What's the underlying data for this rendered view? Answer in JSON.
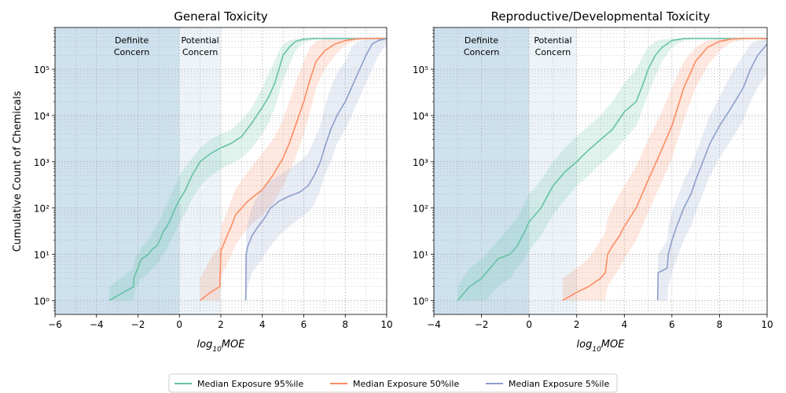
{
  "figure": {
    "legend": [
      {
        "label": "Median Exposure 95%ile",
        "color": "#66c2a5"
      },
      {
        "label": "Median Exposure 50%ile",
        "color": "#fc8d62"
      },
      {
        "label": "Median Exposure 5%ile",
        "color": "#8da0cb"
      }
    ]
  },
  "chart_data": [
    {
      "type": "line",
      "title": "General Toxicity",
      "xlabel": "log10MOE",
      "ylabel": "Cumulative Count of Chemicals",
      "xlim": [
        -6,
        10
      ],
      "ylim": [
        0.5,
        800000
      ],
      "yscale": "log",
      "grid": true,
      "xticks": [
        "−6",
        "−4",
        "−2",
        "0",
        "2",
        "4",
        "6",
        "8",
        "10"
      ],
      "yticks": [
        "10⁰",
        "10¹",
        "10²",
        "10³",
        "10⁴",
        "10⁵"
      ],
      "regions": [
        {
          "label_line1": "Definite",
          "label_line2": "Concern",
          "x0": -6,
          "x1": 0,
          "color": "#a6c8e0",
          "opacity": 0.55
        },
        {
          "label_line1": "Potential",
          "label_line2": "Concern",
          "x0": 0,
          "x1": 2,
          "color": "#a6c8e0",
          "opacity": 0.2
        }
      ],
      "series": [
        {
          "name": "Median Exposure 95%ile",
          "color": "#66c2a5",
          "x": [
            -3.4,
            -2.2,
            -2.2,
            -2.1,
            -2.0,
            -1.9,
            -1.8,
            -1.5,
            -1.3,
            -1.1,
            -0.9,
            -0.8,
            -0.6,
            -0.4,
            -0.3,
            -0.2,
            0.0,
            0.3,
            0.6,
            1.0,
            1.5,
            2.0,
            2.5,
            3.0,
            3.5,
            4.0,
            4.3,
            4.6,
            4.8,
            5.0,
            5.3,
            5.6,
            6.0,
            6.5,
            7.0,
            8.0,
            9.0,
            10.0
          ],
          "y": [
            1,
            2,
            3,
            4,
            5,
            7,
            8,
            10,
            13,
            15,
            22,
            30,
            40,
            60,
            80,
            100,
            150,
            250,
            500,
            1000,
            1500,
            2000,
            2500,
            3500,
            7000,
            15000,
            25000,
            50000,
            100000,
            200000,
            300000,
            400000,
            450000,
            460000,
            460000,
            460000,
            460000,
            460000
          ],
          "band_lower": [
            1,
            1,
            1,
            2,
            2,
            3,
            3,
            4,
            5,
            6,
            8,
            10,
            13,
            20,
            25,
            30,
            45,
            80,
            150,
            300,
            500,
            700,
            900,
            1200,
            2000,
            4000,
            7000,
            15000,
            30000,
            60000,
            120000,
            250000,
            380000,
            440000,
            460000,
            460000,
            460000,
            460000
          ],
          "band_upper": [
            2,
            5,
            7,
            9,
            10,
            12,
            15,
            20,
            30,
            40,
            60,
            80,
            120,
            200,
            250,
            300,
            500,
            800,
            1200,
            2000,
            3000,
            4000,
            5000,
            8000,
            15000,
            40000,
            80000,
            150000,
            250000,
            350000,
            420000,
            450000,
            460000,
            460000,
            460000,
            460000,
            460000,
            460000
          ]
        },
        {
          "name": "Median Exposure 50%ile",
          "color": "#fc8d62",
          "x": [
            1.0,
            1.5,
            1.95,
            2.0,
            2.1,
            2.3,
            2.5,
            2.7,
            3.0,
            3.3,
            3.6,
            4.0,
            4.5,
            5.0,
            5.3,
            5.6,
            6.0,
            6.3,
            6.6,
            7.0,
            7.5,
            8.0,
            8.5,
            9.0,
            10.0
          ],
          "y": [
            1,
            1.5,
            2,
            12,
            15,
            25,
            40,
            70,
            100,
            140,
            180,
            250,
            500,
            1200,
            2500,
            6000,
            20000,
            60000,
            150000,
            250000,
            350000,
            420000,
            450000,
            460000,
            460000
          ],
          "band_lower": [
            1,
            1,
            1,
            3,
            4,
            6,
            10,
            15,
            25,
            35,
            50,
            70,
            120,
            300,
            600,
            1200,
            4000,
            12000,
            40000,
            100000,
            200000,
            330000,
            420000,
            450000,
            460000
          ],
          "band_upper": [
            3,
            8,
            15,
            40,
            50,
            80,
            150,
            250,
            400,
            600,
            900,
            1500,
            3000,
            8000,
            20000,
            50000,
            150000,
            300000,
            400000,
            450000,
            460000,
            460000,
            460000,
            460000,
            460000
          ]
        },
        {
          "name": "Median Exposure 5%ile",
          "color": "#8da0cb",
          "x": [
            3.2,
            3.22,
            3.3,
            3.5,
            3.8,
            4.1,
            4.4,
            4.8,
            5.3,
            5.8,
            6.2,
            6.5,
            6.8,
            7.0,
            7.3,
            7.6,
            8.0,
            8.3,
            8.6,
            9.0,
            9.3,
            9.6,
            10.0
          ],
          "y": [
            1,
            10,
            15,
            25,
            40,
            60,
            100,
            140,
            180,
            220,
            300,
            500,
            1000,
            2000,
            5000,
            10000,
            20000,
            40000,
            80000,
            200000,
            350000,
            420000,
            460000
          ],
          "band_lower": [
            1,
            1,
            2,
            4,
            6,
            10,
            15,
            25,
            40,
            60,
            80,
            120,
            250,
            500,
            1000,
            2500,
            5000,
            10000,
            20000,
            50000,
            100000,
            200000,
            350000
          ],
          "band_upper": [
            10,
            30,
            50,
            100,
            200,
            300,
            400,
            500,
            700,
            1000,
            1500,
            3000,
            6000,
            15000,
            40000,
            80000,
            150000,
            300000,
            400000,
            450000,
            460000,
            460000,
            460000
          ]
        }
      ]
    },
    {
      "type": "line",
      "title": "Reproductive/Developmental Toxicity",
      "xlabel": "log10MOE",
      "ylabel": "",
      "xlim": [
        -4,
        10
      ],
      "ylim": [
        0.5,
        800000
      ],
      "yscale": "log",
      "grid": true,
      "xticks": [
        "−4",
        "−2",
        "0",
        "2",
        "4",
        "6",
        "8",
        "10"
      ],
      "yticks": [
        "10⁰",
        "10¹",
        "10²",
        "10³",
        "10⁴",
        "10⁵"
      ],
      "regions": [
        {
          "label_line1": "Definite",
          "label_line2": "Concern",
          "x0": -4,
          "x1": 0,
          "color": "#a6c8e0",
          "opacity": 0.55
        },
        {
          "label_line1": "Potential",
          "label_line2": "Concern",
          "x0": 0,
          "x1": 2,
          "color": "#a6c8e0",
          "opacity": 0.2
        }
      ],
      "series": [
        {
          "name": "Median Exposure 95%ile",
          "color": "#66c2a5",
          "x": [
            -3.0,
            -2.5,
            -2.0,
            -1.8,
            -1.3,
            -0.8,
            -0.5,
            -0.2,
            0.0,
            0.5,
            1.0,
            1.5,
            2.0,
            2.5,
            3.0,
            3.5,
            4.0,
            4.5,
            4.8,
            5.0,
            5.3,
            5.6,
            6.0,
            6.5,
            7.0,
            8.0,
            10.0
          ],
          "y": [
            1,
            2,
            3,
            4,
            8,
            10,
            15,
            30,
            50,
            100,
            300,
            600,
            1000,
            1800,
            3000,
            5000,
            12000,
            20000,
            50000,
            100000,
            200000,
            300000,
            420000,
            460000,
            460000,
            460000,
            460000
          ],
          "band_lower": [
            1,
            1,
            1,
            1,
            2,
            3,
            5,
            8,
            12,
            25,
            70,
            150,
            300,
            500,
            900,
            1500,
            3000,
            6000,
            15000,
            30000,
            70000,
            150000,
            300000,
            420000,
            460000,
            460000,
            460000
          ],
          "band_upper": [
            2,
            5,
            8,
            10,
            20,
            40,
            60,
            120,
            200,
            400,
            1000,
            2000,
            3500,
            6000,
            10000,
            20000,
            50000,
            100000,
            200000,
            300000,
            400000,
            440000,
            460000,
            460000,
            460000,
            460000,
            460000
          ]
        },
        {
          "name": "Median Exposure 50%ile",
          "color": "#fc8d62",
          "x": [
            1.4,
            2.0,
            2.5,
            3.0,
            3.2,
            3.3,
            3.5,
            3.8,
            4.0,
            4.5,
            5.0,
            5.5,
            6.0,
            6.5,
            7.0,
            7.5,
            8.0,
            8.5,
            9.0,
            10.0
          ],
          "y": [
            1,
            1.5,
            2,
            3,
            4,
            10,
            15,
            25,
            40,
            100,
            400,
            1500,
            6000,
            40000,
            150000,
            300000,
            400000,
            450000,
            460000,
            460000
          ],
          "band_lower": [
            1,
            1,
            1,
            1,
            1,
            2,
            3,
            5,
            8,
            20,
            80,
            300,
            1200,
            8000,
            40000,
            120000,
            250000,
            380000,
            440000,
            460000
          ],
          "band_upper": [
            3,
            5,
            8,
            20,
            30,
            60,
            100,
            200,
            300,
            800,
            3000,
            10000,
            40000,
            150000,
            300000,
            420000,
            450000,
            460000,
            460000,
            460000
          ]
        },
        {
          "name": "Median Exposure 5%ile",
          "color": "#8da0cb",
          "x": [
            5.4,
            5.42,
            5.8,
            5.85,
            6.0,
            6.2,
            6.5,
            6.8,
            7.0,
            7.3,
            7.6,
            8.0,
            8.5,
            9.0,
            9.3,
            9.6,
            10.0
          ],
          "y": [
            1,
            4,
            5,
            10,
            20,
            40,
            100,
            200,
            400,
            1000,
            2500,
            6000,
            15000,
            40000,
            100000,
            200000,
            350000
          ],
          "band_lower": [
            1,
            1,
            1,
            2,
            4,
            8,
            20,
            40,
            80,
            200,
            500,
            1200,
            3000,
            8000,
            20000,
            40000,
            80000
          ],
          "band_upper": [
            4,
            10,
            20,
            40,
            80,
            150,
            400,
            800,
            1500,
            4000,
            10000,
            25000,
            80000,
            200000,
            350000,
            420000,
            460000
          ]
        }
      ]
    }
  ]
}
